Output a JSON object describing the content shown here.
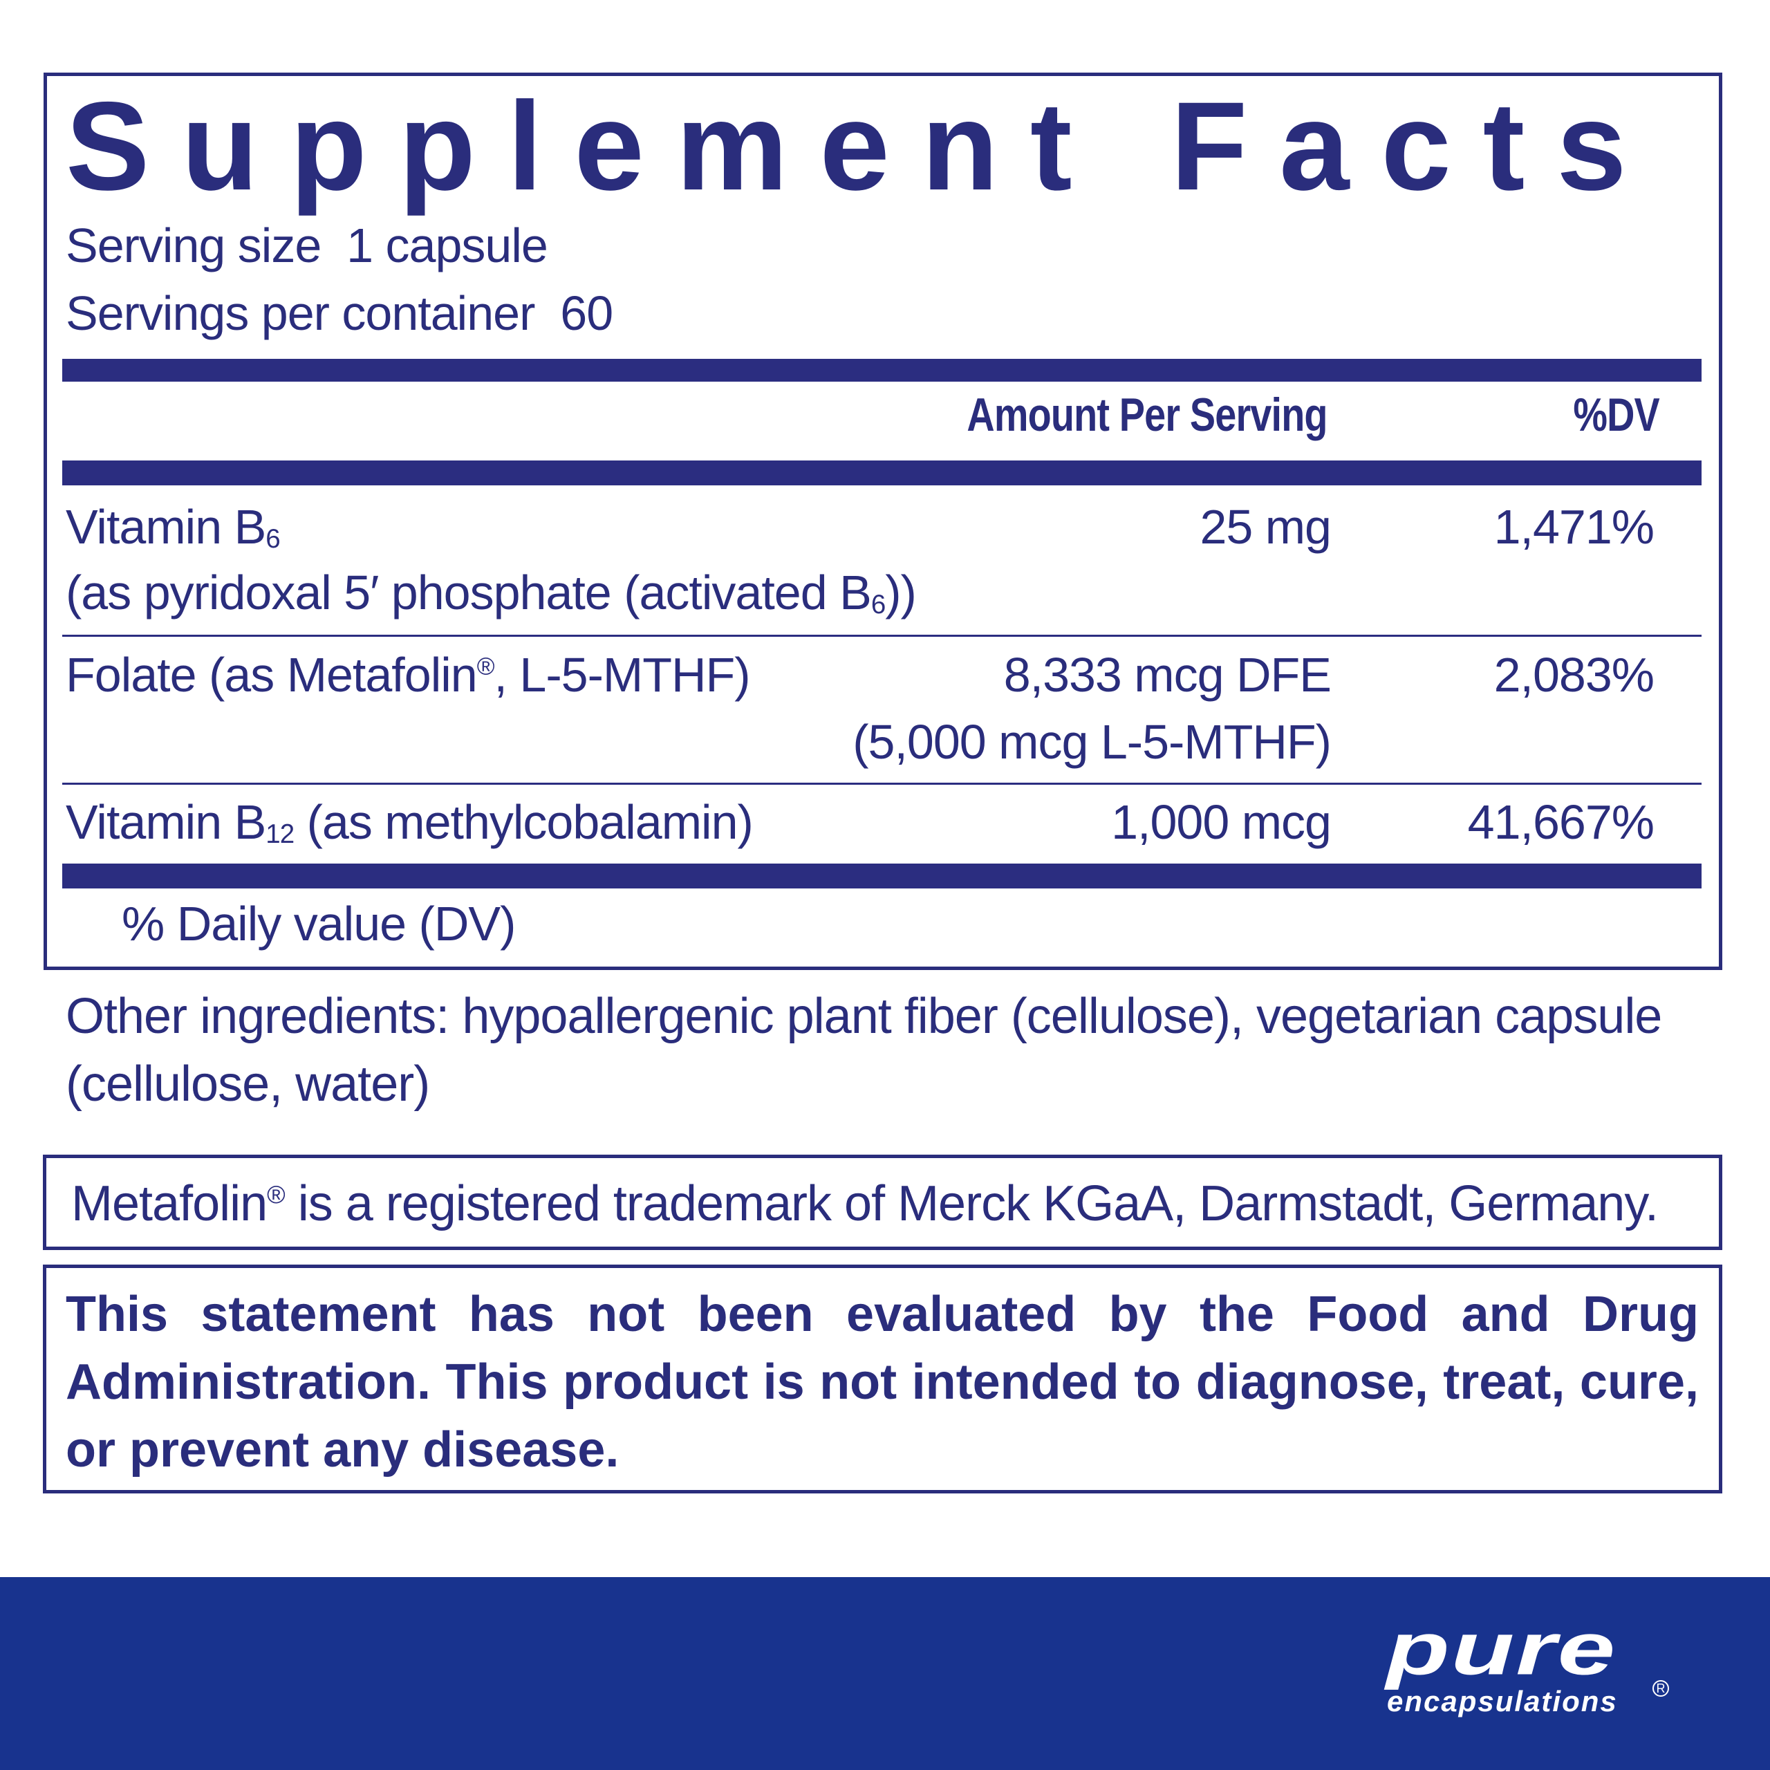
{
  "label": {
    "title": "Supplement Facts",
    "serving_size": "Serving size  1 capsule",
    "servings_per_container": "Servings per container  60",
    "headers": {
      "amount": "Amount Per Serving",
      "dv": "%DV"
    },
    "rows": [
      {
        "name": "Vitamin B",
        "name_sub": "6",
        "detail": "(as pyridoxal 5′ phosphate (activated B",
        "detail_sub": "6",
        "detail_end": "))",
        "amount": "25 mg",
        "dv": "1,471%"
      },
      {
        "name": "Folate (as Metafolin",
        "name_sup": "®",
        "name_end": ", L-5-MTHF)",
        "amount": "8,333 mcg DFE",
        "amount_detail": "(5,000 mcg L-5-MTHF)",
        "dv": "2,083%"
      },
      {
        "name": "Vitamin B",
        "name_sub": "12",
        "name_end": " (as methylcobalamin)",
        "amount": "1,000 mcg",
        "dv": "41,667%"
      }
    ],
    "footnote": "% Daily value (DV)"
  },
  "other_ingredients": {
    "line1": "Other ingredients: hypoallergenic plant fiber (cellulose), vegetarian capsule",
    "line2": "(cellulose, water)"
  },
  "trademark": {
    "pre": "Metafolin",
    "sup": "®",
    "post": " is a registered trademark of Merck KGaA, Darmstadt, Germany."
  },
  "disclaimer": "This statement has not been evaluated by the Food and Drug Administration. This product is not intended to diagnose, treat, cure, or prevent any disease.",
  "brand": {
    "logo_main": "pure",
    "logo_sub": "encapsulations",
    "registered": "R"
  },
  "colors": {
    "text": "#2a2d7c",
    "footer": "#18338e"
  }
}
